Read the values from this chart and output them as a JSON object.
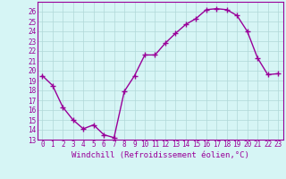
{
  "x": [
    0,
    1,
    2,
    3,
    4,
    5,
    6,
    7,
    8,
    9,
    10,
    11,
    12,
    13,
    14,
    15,
    16,
    17,
    18,
    19,
    20,
    21,
    22,
    23
  ],
  "y": [
    19.5,
    18.5,
    16.3,
    15.0,
    14.1,
    14.5,
    13.5,
    13.2,
    17.9,
    19.5,
    21.6,
    21.6,
    22.8,
    23.8,
    24.7,
    25.3,
    26.2,
    26.3,
    26.2,
    25.6,
    24.0,
    21.3,
    19.6,
    19.7
  ],
  "line_color": "#990099",
  "marker": "+",
  "marker_size": 4,
  "marker_lw": 1.0,
  "bg_color": "#d6f5f5",
  "grid_color": "#b0d8d8",
  "xlabel": "Windchill (Refroidissement éolien,°C)",
  "xlabel_color": "#990099",
  "ylim": [
    13,
    27
  ],
  "xlim_min": -0.5,
  "xlim_max": 23.5,
  "yticks": [
    13,
    14,
    15,
    16,
    17,
    18,
    19,
    20,
    21,
    22,
    23,
    24,
    25,
    26
  ],
  "xticks": [
    0,
    1,
    2,
    3,
    4,
    5,
    6,
    7,
    8,
    9,
    10,
    11,
    12,
    13,
    14,
    15,
    16,
    17,
    18,
    19,
    20,
    21,
    22,
    23
  ],
  "tick_label_color": "#990099",
  "tick_label_size": 5.5,
  "xlabel_size": 6.5,
  "spine_color": "#990099",
  "line_width": 1.0
}
